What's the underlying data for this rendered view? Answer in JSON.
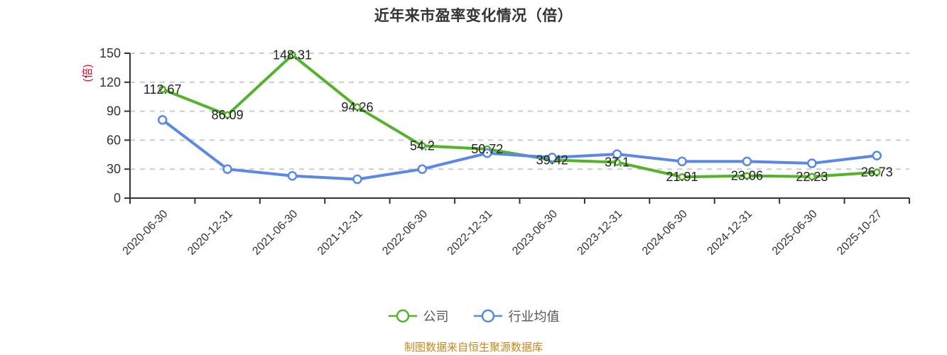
{
  "title": "近年来市盈率变化情况（倍）",
  "footer": "制图数据来自恒生聚源数据库",
  "palette": {
    "green": "#54b32b",
    "blue": "#5b87e6",
    "grid": "#cccccc",
    "axis": "#333333",
    "text": "#333333",
    "value_label": "#222222",
    "legend_text": "#555555",
    "footer_orange": "#c8881e",
    "unit_red": "#d9001b"
  },
  "legend": [
    {
      "label": "公司",
      "color": "#54b32b"
    },
    {
      "label": "行业均值",
      "color": "#5b87e6"
    }
  ],
  "chart_data": {
    "type": "line",
    "title": "近年来市盈率变化情况（倍）",
    "categories": [
      "2020-06-30",
      "2020-12-31",
      "2021-06-30",
      "2021-12-31",
      "2022-06-30",
      "2022-12-31",
      "2023-06-30",
      "2023-12-31",
      "2024-06-30",
      "2024-12-31",
      "2025-06-30",
      "2025-10-27"
    ],
    "series": [
      {
        "name": "公司",
        "color": "#54b32b",
        "show_labels": true,
        "values": [
          112.67,
          86.09,
          148.31,
          94.26,
          54.2,
          50.72,
          39.42,
          37.1,
          21.91,
          23.06,
          22.23,
          26.73
        ]
      },
      {
        "name": "行业均值",
        "color": "#5b87e6",
        "show_labels": false,
        "values": [
          81,
          30,
          23,
          19.5,
          30,
          46.5,
          42,
          45.5,
          38,
          38,
          36,
          44
        ]
      }
    ],
    "xlabel": "",
    "ylabel": "(倍)",
    "yticks": [
      0,
      30,
      60,
      90,
      120,
      150
    ],
    "ylim": [
      0,
      150
    ],
    "grid": true,
    "grid_style": "dashed",
    "legend_position": "bottom",
    "x_label_rotation": 45
  }
}
